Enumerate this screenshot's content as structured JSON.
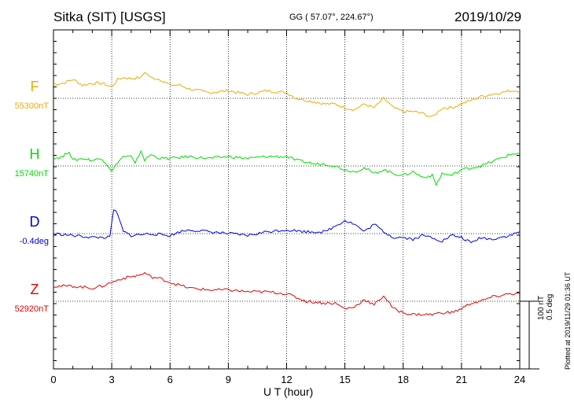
{
  "header": {
    "station": "Sitka (SIT)  [USGS]",
    "coords": "GG ( 57.07°, 224.67°)",
    "date": "2019/10/29"
  },
  "scale": {
    "nt": "100 nT",
    "deg": "0.5 deg"
  },
  "footer_note": "Plotted at 2019/11/29 01:36 UT",
  "chart_data": {
    "type": "line",
    "xlabel": "U T (hour)",
    "xlim": [
      0,
      24
    ],
    "xticks": [
      0,
      3,
      6,
      9,
      12,
      15,
      18,
      21,
      24
    ],
    "grid": true,
    "scale_bar": "100 nT / 0.5 deg",
    "series": [
      {
        "name": "F",
        "baseline": "55300nT",
        "color": "#f2a900",
        "x": [
          0,
          0.5,
          1,
          1.5,
          2,
          2.5,
          3,
          3.3,
          3.6,
          4,
          4.5,
          4.7,
          5,
          5.5,
          6,
          6.5,
          7,
          8,
          9,
          10,
          11,
          12,
          12.5,
          13,
          13.5,
          14,
          14.5,
          15,
          15.5,
          16,
          16.5,
          17,
          17.5,
          18,
          18.5,
          19,
          19.5,
          20,
          20.5,
          21,
          21.5,
          22,
          22.5,
          23,
          23.5,
          24
        ],
        "y": [
          15,
          16,
          20,
          14,
          16,
          16,
          12,
          20,
          22,
          21,
          22,
          28,
          22,
          20,
          14,
          14,
          10,
          6,
          8,
          4,
          8,
          6,
          0,
          -2,
          -4,
          -6,
          -6,
          -10,
          -12,
          -6,
          -10,
          0,
          -10,
          -14,
          -14,
          -16,
          -20,
          -10,
          -10,
          -6,
          -2,
          2,
          4,
          6,
          8,
          8
        ]
      },
      {
        "name": "H",
        "baseline": "15740nT",
        "color": "#00dd00",
        "x": [
          0,
          0.5,
          0.8,
          1,
          1.5,
          2,
          2.5,
          2.9,
          3,
          3.3,
          3.6,
          4,
          4.2,
          4.5,
          4.7,
          5,
          5.5,
          6,
          7,
          8,
          9,
          10,
          11,
          12,
          12.5,
          13,
          13.5,
          14,
          14.5,
          15,
          15.5,
          16,
          16.5,
          17,
          17.5,
          18,
          18.5,
          19,
          19.5,
          19.7,
          20,
          20.5,
          21,
          21.5,
          22,
          22.5,
          23,
          23.5,
          24
        ],
        "y": [
          8,
          10,
          16,
          6,
          8,
          6,
          8,
          -2,
          -6,
          4,
          10,
          10,
          2,
          16,
          6,
          12,
          8,
          8,
          10,
          8,
          10,
          8,
          10,
          10,
          6,
          4,
          2,
          2,
          0,
          -4,
          -6,
          -2,
          -8,
          -4,
          -8,
          -10,
          -6,
          -12,
          -10,
          -20,
          -8,
          -10,
          -4,
          -2,
          0,
          4,
          8,
          12,
          14
        ]
      },
      {
        "name": "D",
        "baseline": "-0.4deg",
        "color": "#0000e6",
        "x": [
          0,
          1,
          2,
          2.9,
          3.1,
          3.3,
          3.6,
          4,
          5,
          6,
          6.5,
          7,
          8,
          9,
          10,
          11,
          12,
          13,
          14,
          14.5,
          15,
          15.5,
          16,
          16.5,
          17,
          17.5,
          18,
          18.5,
          19,
          19.5,
          20,
          20.5,
          21,
          21.5,
          22,
          22.5,
          23,
          23.5,
          24
        ],
        "y": [
          0,
          -2,
          -4,
          -4,
          26,
          20,
          2,
          -2,
          0,
          -2,
          2,
          4,
          2,
          0,
          -2,
          2,
          4,
          2,
          2,
          8,
          14,
          10,
          2,
          10,
          2,
          -4,
          -4,
          -6,
          -2,
          -4,
          -8,
          -2,
          -4,
          -10,
          -4,
          -6,
          -4,
          -2,
          2
        ]
      },
      {
        "name": "Z",
        "baseline": "52920nT",
        "color": "#e60000",
        "x": [
          0,
          1,
          2,
          2.5,
          3,
          3.5,
          4,
          4.5,
          4.7,
          5,
          5.5,
          6,
          7,
          8,
          9,
          10,
          11,
          12,
          12.5,
          13,
          14,
          14.5,
          15,
          15.5,
          16,
          16.5,
          17,
          17.5,
          18,
          18.5,
          19,
          19.5,
          20,
          20.5,
          21,
          21.5,
          22,
          22.5,
          23,
          23.5,
          24
        ],
        "y": [
          16,
          16,
          14,
          16,
          20,
          24,
          26,
          28,
          30,
          26,
          24,
          20,
          14,
          12,
          12,
          10,
          10,
          8,
          4,
          0,
          -2,
          -2,
          -8,
          -6,
          2,
          -4,
          6,
          -8,
          -12,
          -14,
          -14,
          -14,
          -12,
          -12,
          -8,
          -2,
          0,
          4,
          6,
          8,
          8
        ]
      }
    ]
  }
}
